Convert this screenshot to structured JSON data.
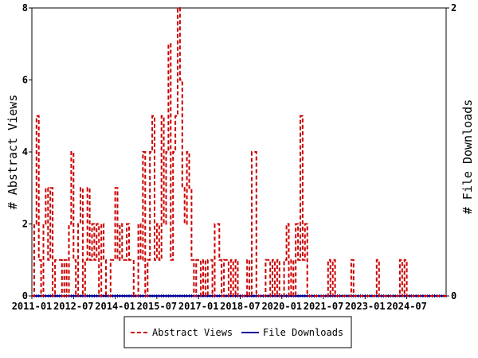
{
  "chart_data": {
    "type": "line",
    "title": "",
    "left_axis": {
      "label": "# Abstract Views",
      "ylim": [
        0,
        8
      ],
      "ticks": [
        0,
        2,
        4,
        6,
        8
      ]
    },
    "right_axis": {
      "label": "# File Downloads",
      "ylim": [
        0,
        2
      ],
      "ticks": [
        0,
        2
      ]
    },
    "x_axis": {
      "type": "date",
      "range": [
        "2011-01",
        "2025-12"
      ],
      "tick_labels": [
        "2011-01",
        "2012-07",
        "2014-01",
        "2015-07",
        "2017-01",
        "2018-07",
        "2020-01",
        "2021-07",
        "2023-01",
        "2024-07"
      ]
    },
    "grid": false,
    "legend_placement": "bottom-center",
    "series": [
      {
        "name": "Abstract Views",
        "axis": "left",
        "color": "#cc0000",
        "style": "dashed",
        "x": [
          "2011-01",
          "2011-02",
          "2011-03",
          "2011-04",
          "2011-05",
          "2011-06",
          "2011-07",
          "2011-08",
          "2011-09",
          "2011-10",
          "2011-11",
          "2011-12",
          "2012-01",
          "2012-02",
          "2012-03",
          "2012-04",
          "2012-05",
          "2012-06",
          "2012-07",
          "2012-08",
          "2012-09",
          "2012-10",
          "2012-11",
          "2012-12",
          "2013-01",
          "2013-02",
          "2013-03",
          "2013-04",
          "2013-05",
          "2013-06",
          "2013-07",
          "2013-08",
          "2013-09",
          "2013-10",
          "2013-11",
          "2013-12",
          "2014-01",
          "2014-02",
          "2014-03",
          "2014-04",
          "2014-05",
          "2014-06",
          "2014-07",
          "2014-08",
          "2014-09",
          "2014-10",
          "2014-11",
          "2014-12",
          "2015-01",
          "2015-02",
          "2015-03",
          "2015-04",
          "2015-05",
          "2015-06",
          "2015-07",
          "2015-08",
          "2015-09",
          "2015-10",
          "2015-11",
          "2015-12",
          "2016-01",
          "2016-02",
          "2016-03",
          "2016-04",
          "2016-05",
          "2016-06",
          "2016-07",
          "2016-08",
          "2016-09",
          "2016-10",
          "2016-11",
          "2016-12",
          "2017-01",
          "2017-02",
          "2017-03",
          "2017-04",
          "2017-05",
          "2017-06",
          "2017-07",
          "2017-08",
          "2017-09",
          "2017-10",
          "2017-11",
          "2017-12",
          "2018-01",
          "2018-02",
          "2018-03",
          "2018-04",
          "2018-05",
          "2018-06",
          "2018-07",
          "2018-08",
          "2018-09",
          "2018-10",
          "2018-11",
          "2018-12",
          "2019-01",
          "2019-02",
          "2019-03",
          "2019-04",
          "2019-05",
          "2019-06",
          "2019-07",
          "2019-08",
          "2019-09",
          "2019-10",
          "2019-11",
          "2019-12",
          "2020-01",
          "2020-02",
          "2020-03",
          "2020-04",
          "2020-05",
          "2020-06",
          "2020-07",
          "2020-08",
          "2020-09",
          "2020-10",
          "2020-11",
          "2020-12",
          "2021-01",
          "2021-02",
          "2021-03",
          "2021-04",
          "2021-05",
          "2021-06",
          "2021-07",
          "2021-08",
          "2021-09",
          "2021-10",
          "2021-11",
          "2021-12",
          "2022-01",
          "2022-02",
          "2022-03",
          "2022-04",
          "2022-05",
          "2022-06",
          "2022-07",
          "2022-08",
          "2022-09",
          "2022-10",
          "2022-11",
          "2022-12",
          "2023-01",
          "2023-02",
          "2023-03",
          "2023-04",
          "2023-05",
          "2023-06",
          "2023-07",
          "2023-08",
          "2023-09",
          "2023-10",
          "2023-11",
          "2023-12",
          "2024-01",
          "2024-02",
          "2024-03",
          "2024-04",
          "2024-05",
          "2024-06",
          "2024-07",
          "2024-08",
          "2024-09",
          "2024-10",
          "2024-11",
          "2024-12",
          "2025-01",
          "2025-02",
          "2025-03",
          "2025-04",
          "2025-05",
          "2025-06",
          "2025-07",
          "2025-08",
          "2025-09",
          "2025-10",
          "2025-11",
          "2025-12"
        ],
        "values": [
          0,
          2,
          5,
          1,
          0,
          2,
          3,
          1,
          3,
          0,
          1,
          1,
          1,
          0,
          1,
          0,
          2,
          4,
          1,
          0,
          2,
          3,
          0,
          1,
          3,
          1,
          2,
          1,
          2,
          0,
          2,
          1,
          0,
          0,
          1,
          1,
          3,
          1,
          2,
          1,
          1,
          2,
          1,
          1,
          0,
          0,
          2,
          1,
          4,
          0,
          1,
          4,
          5,
          1,
          2,
          1,
          5,
          2,
          4,
          7,
          1,
          4,
          5,
          8,
          6,
          3,
          2,
          4,
          3,
          1,
          0,
          1,
          1,
          0,
          1,
          0,
          1,
          1,
          0,
          2,
          2,
          1,
          0,
          1,
          1,
          0,
          1,
          0,
          1,
          0,
          0,
          0,
          0,
          1,
          0,
          4,
          4,
          0,
          0,
          0,
          0,
          1,
          1,
          0,
          1,
          0,
          1,
          0,
          0,
          1,
          2,
          0,
          1,
          0,
          2,
          1,
          5,
          1,
          2,
          0,
          0,
          0,
          0,
          0,
          0,
          0,
          0,
          0,
          1,
          0,
          1,
          0,
          0,
          0,
          0,
          0,
          0,
          0,
          1,
          0,
          0,
          0,
          0,
          0,
          0,
          0,
          0,
          0,
          0,
          1,
          0,
          0,
          0,
          0,
          0,
          0,
          0,
          0,
          0,
          1,
          0,
          1,
          0,
          0,
          0,
          0,
          0,
          0,
          0,
          0,
          0,
          0,
          0,
          0,
          0,
          0,
          0,
          0,
          0,
          0
        ]
      },
      {
        "name": "File Downloads",
        "axis": "right",
        "color": "#000099",
        "style": "solid",
        "values": "all 0"
      }
    ]
  }
}
